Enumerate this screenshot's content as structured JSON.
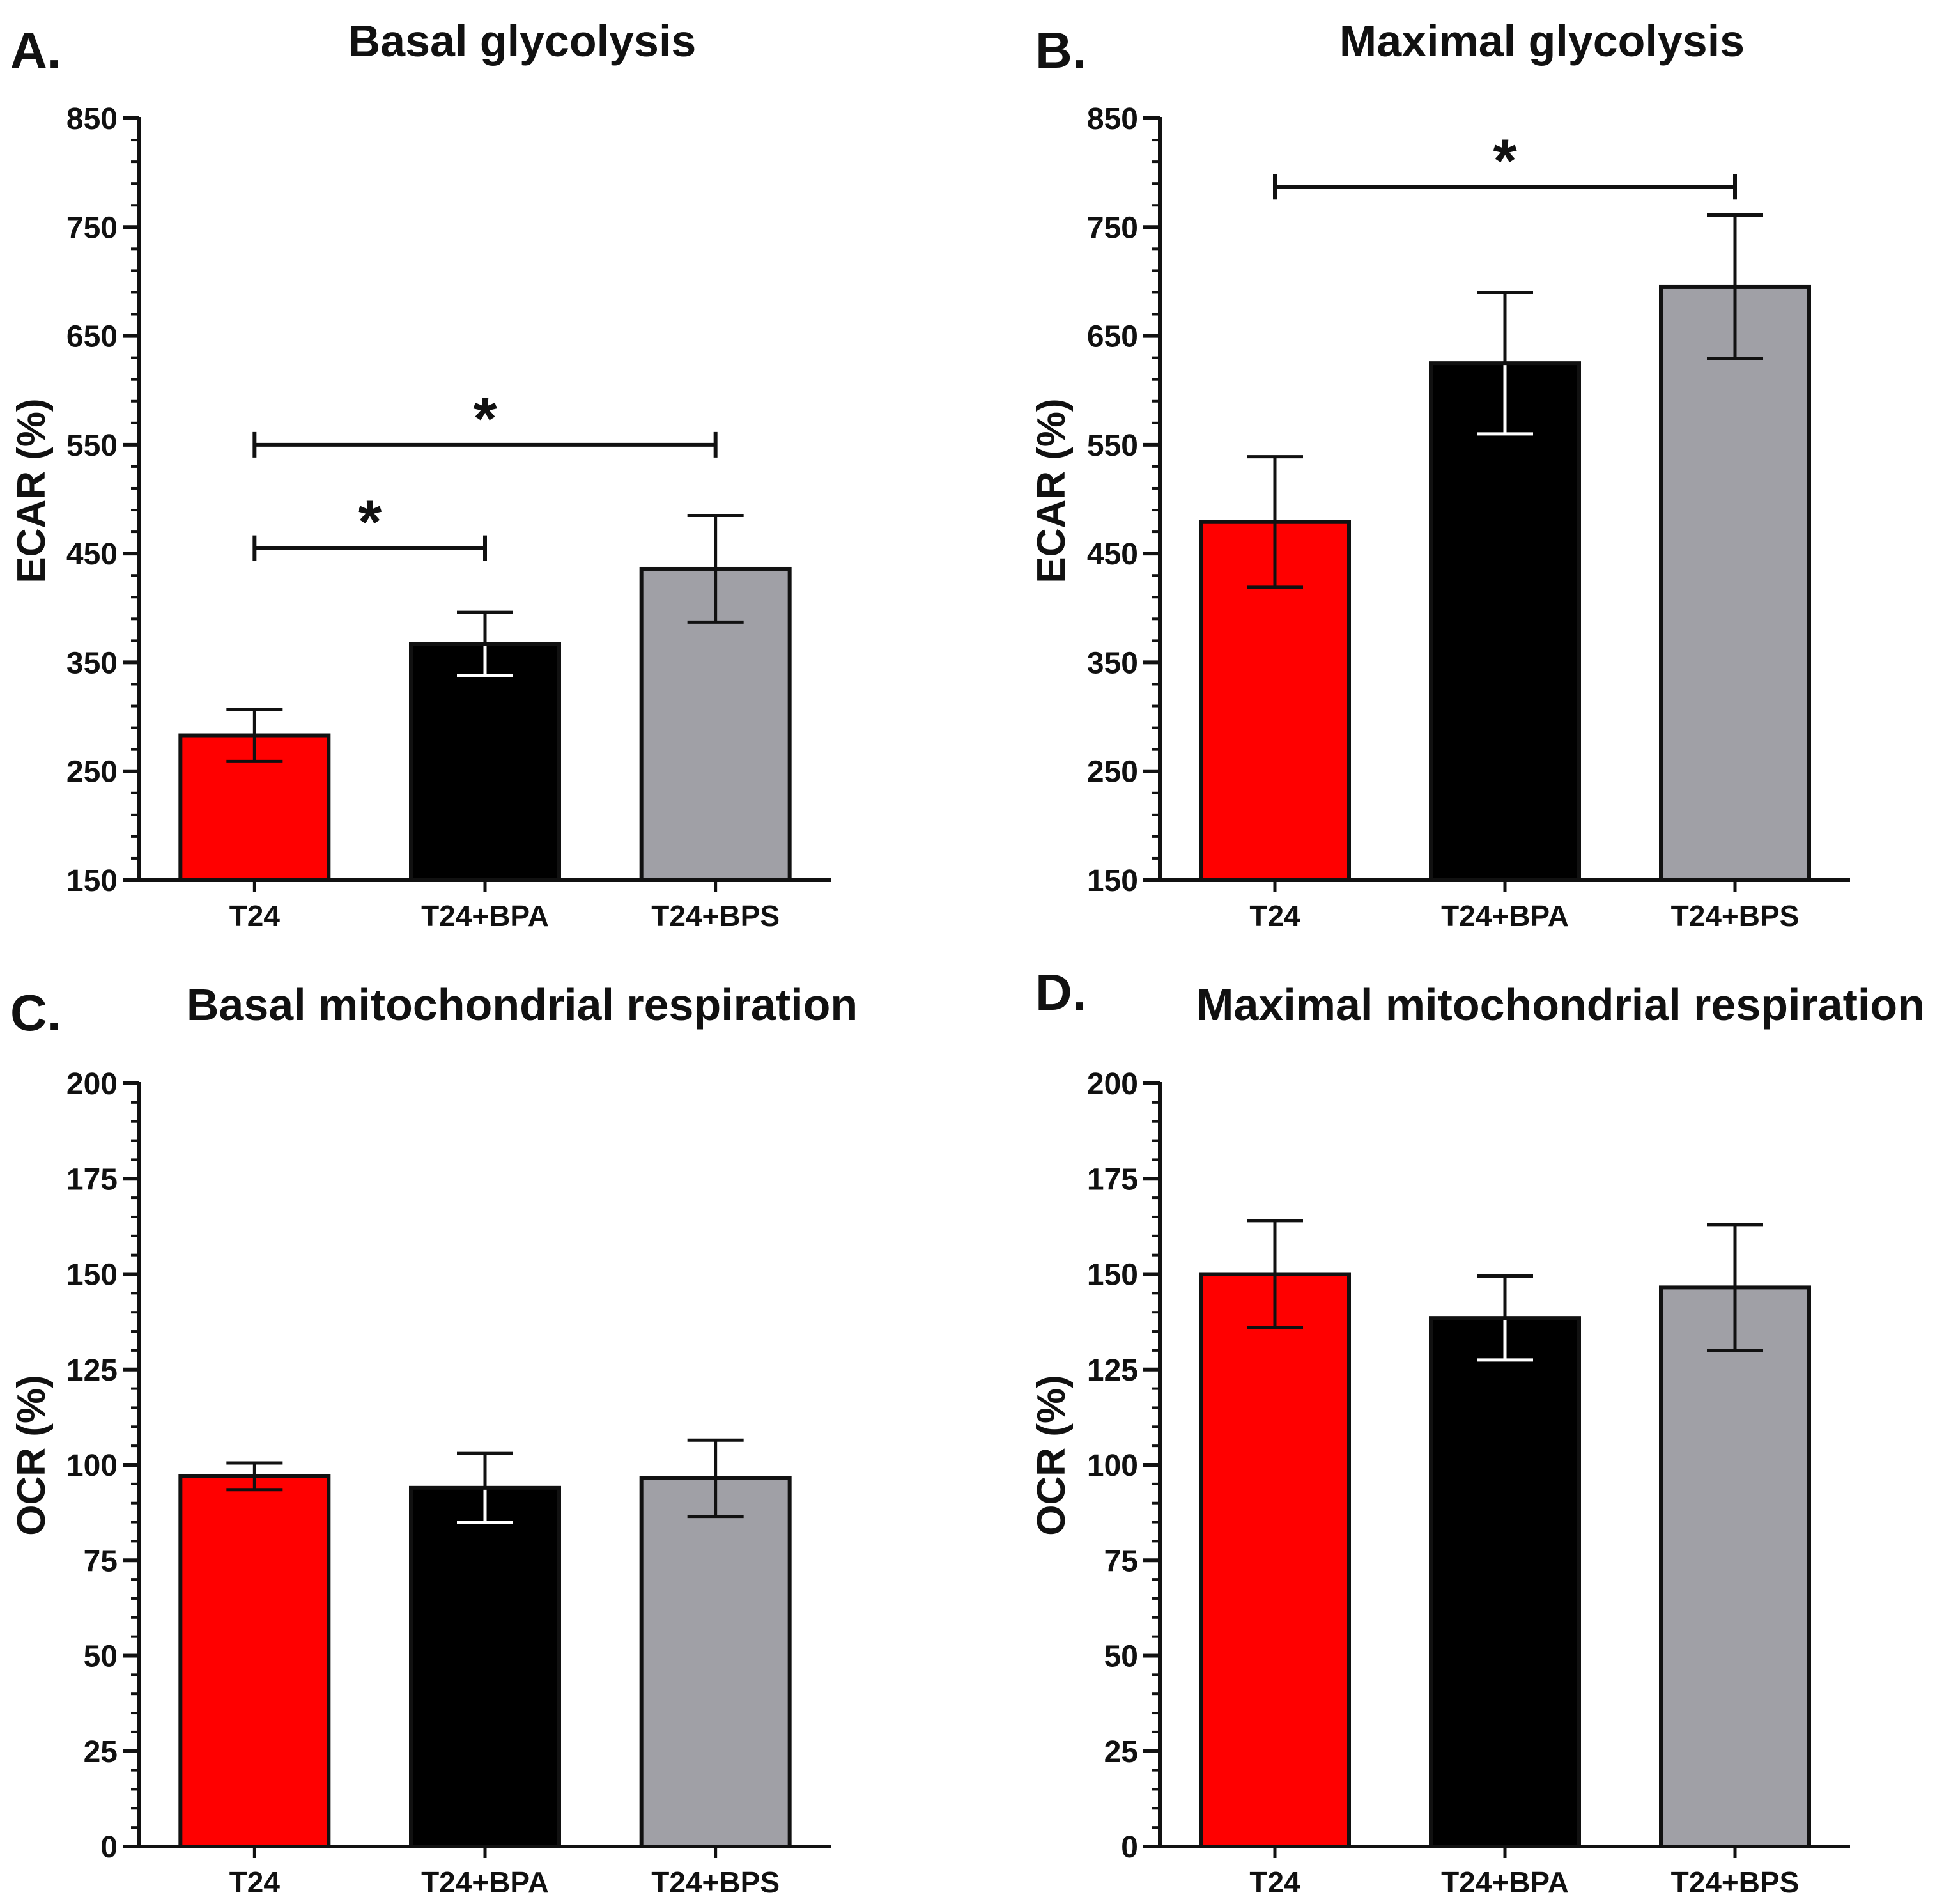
{
  "figure": {
    "background": "#ffffff",
    "colors": {
      "T24": "#ff0000",
      "T24+BPA": "#000000",
      "T24+BPS": "#a0a0a6",
      "axis": "#111111"
    }
  },
  "chart_data": [
    {
      "panel": "A.",
      "type": "bar",
      "title": "Basal glycolysis",
      "xlabel": "",
      "ylabel": "ECAR (%)",
      "categories": [
        "T24",
        "T24+BPA",
        "T24+BPS"
      ],
      "values": [
        283,
        367,
        436
      ],
      "errors": [
        24,
        29,
        49
      ],
      "ylim": [
        150,
        850
      ],
      "yticks": [
        150,
        250,
        350,
        450,
        550,
        650,
        750,
        850
      ],
      "grid": false,
      "significance": [
        {
          "from": 0,
          "to": 1,
          "y": 455,
          "label": "*"
        },
        {
          "from": 0,
          "to": 2,
          "y": 550,
          "label": "*"
        }
      ]
    },
    {
      "panel": "B.",
      "type": "bar",
      "title": "Maximal glycolysis",
      "xlabel": "",
      "ylabel": "ECAR (%)",
      "categories": [
        "T24",
        "T24+BPA",
        "T24+BPS"
      ],
      "values": [
        479,
        625,
        695
      ],
      "errors": [
        60,
        65,
        66
      ],
      "ylim": [
        150,
        850
      ],
      "yticks": [
        150,
        250,
        350,
        450,
        550,
        650,
        750,
        850
      ],
      "grid": false,
      "significance": [
        {
          "from": 0,
          "to": 2,
          "y": 787,
          "label": "*"
        }
      ]
    },
    {
      "panel": "C.",
      "type": "bar",
      "title": "Basal mitochondrial respiration",
      "xlabel": "",
      "ylabel": "OCR (%)",
      "categories": [
        "T24",
        "T24+BPA",
        "T24+BPS"
      ],
      "values": [
        97,
        94,
        96.5
      ],
      "errors": [
        3.5,
        9,
        10
      ],
      "ylim": [
        0,
        200
      ],
      "yticks": [
        0,
        25,
        50,
        75,
        100,
        125,
        150,
        175,
        200
      ],
      "grid": false,
      "significance": []
    },
    {
      "panel": "D.",
      "type": "bar",
      "title": "Maximal mitochondrial respiration",
      "xlabel": "",
      "ylabel": "OCR (%)",
      "categories": [
        "T24",
        "T24+BPA",
        "T24+BPS"
      ],
      "values": [
        150,
        138.5,
        146.5
      ],
      "errors": [
        14,
        11,
        16.5
      ],
      "ylim": [
        0,
        200
      ],
      "yticks": [
        0,
        25,
        50,
        75,
        100,
        125,
        150,
        175,
        200
      ],
      "grid": false,
      "significance": []
    }
  ]
}
